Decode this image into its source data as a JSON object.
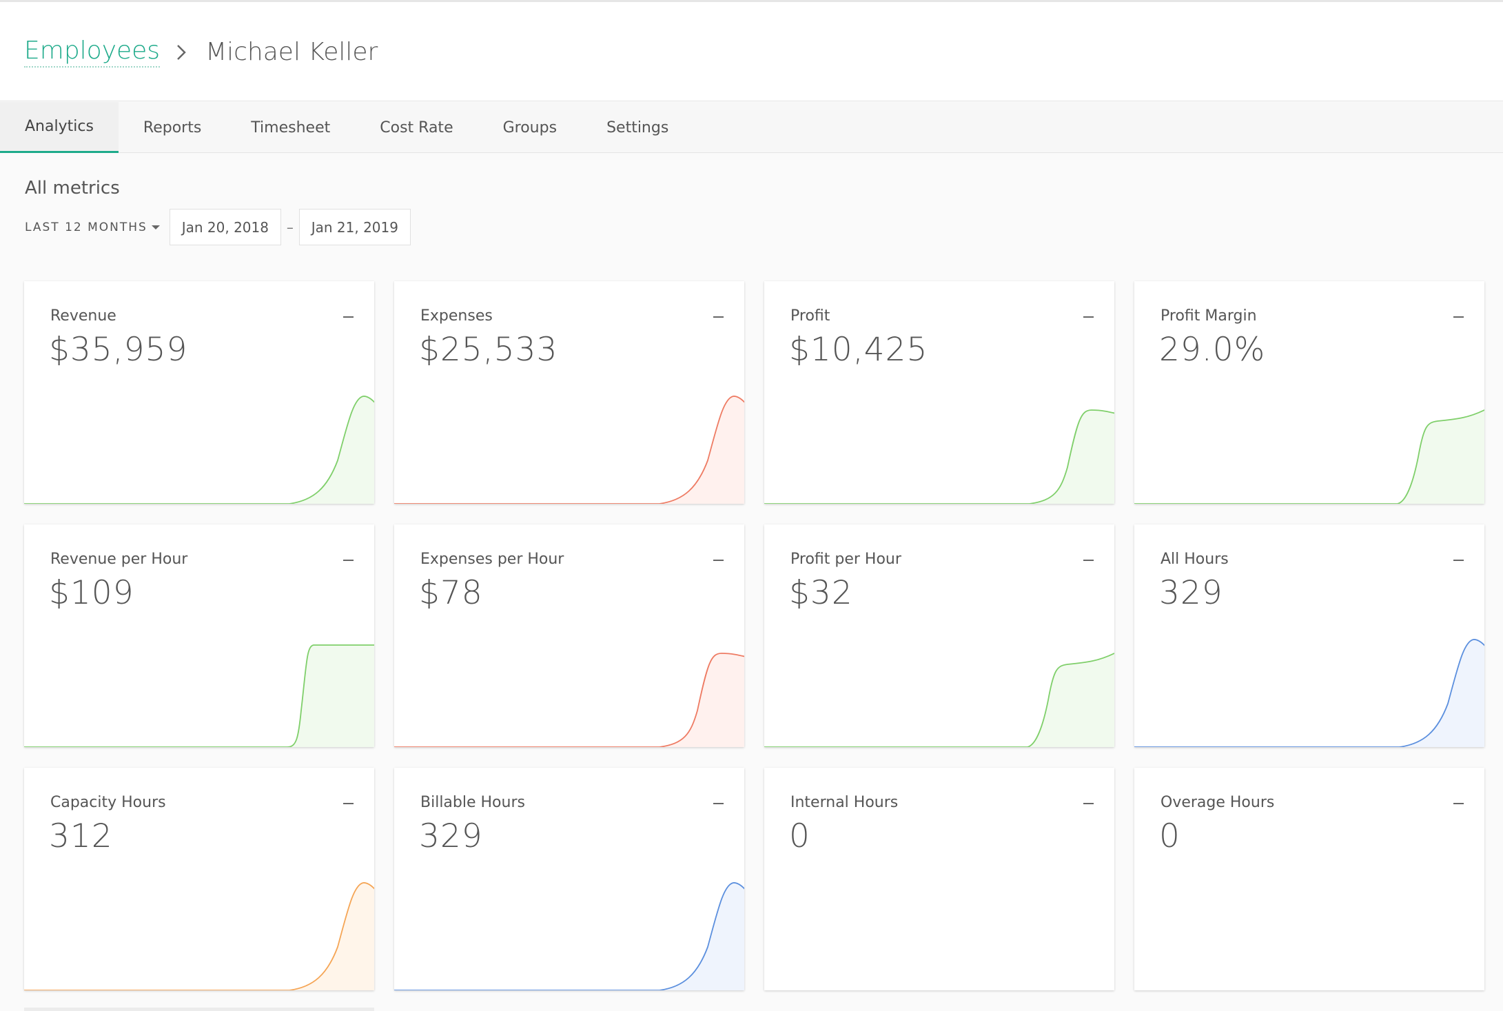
{
  "breadcrumb": {
    "parent": "Employees",
    "current": "Michael Keller"
  },
  "tabs": [
    {
      "label": "Analytics",
      "active": true
    },
    {
      "label": "Reports",
      "active": false
    },
    {
      "label": "Timesheet",
      "active": false
    },
    {
      "label": "Cost Rate",
      "active": false
    },
    {
      "label": "Groups",
      "active": false
    },
    {
      "label": "Settings",
      "active": false
    }
  ],
  "metrics": {
    "title": "All metrics",
    "range_label": "LAST 12 MONTHS",
    "start_date": "Jan 20, 2018",
    "separator": "–",
    "end_date": "Jan 21, 2019"
  },
  "colors": {
    "accent": "#1daa8a",
    "green": "#7fcf6a",
    "red": "#ee7b63",
    "blue": "#5b8fde",
    "orange": "#f5a555"
  },
  "cards": [
    {
      "label": "Revenue",
      "value": "$35,959",
      "color": "green",
      "trend": "peak"
    },
    {
      "label": "Expenses",
      "value": "$25,533",
      "color": "red",
      "trend": "peak"
    },
    {
      "label": "Profit",
      "value": "$10,425",
      "color": "green",
      "trend": "plateau"
    },
    {
      "label": "Profit Margin",
      "value": "29.0%",
      "color": "green",
      "trend": "rising"
    },
    {
      "label": "Revenue per Hour",
      "value": "$109",
      "color": "green",
      "trend": "flat"
    },
    {
      "label": "Expenses per Hour",
      "value": "$78",
      "color": "red",
      "trend": "plateau"
    },
    {
      "label": "Profit per Hour",
      "value": "$32",
      "color": "green",
      "trend": "rising"
    },
    {
      "label": "All Hours",
      "value": "329",
      "color": "blue",
      "trend": "peak"
    },
    {
      "label": "Capacity Hours",
      "value": "312",
      "color": "orange",
      "trend": "peak"
    },
    {
      "label": "Billable Hours",
      "value": "329",
      "color": "blue",
      "trend": "peak"
    },
    {
      "label": "Internal Hours",
      "value": "0",
      "color": "none",
      "trend": "none"
    },
    {
      "label": "Overage Hours",
      "value": "0",
      "color": "none",
      "trend": "none"
    }
  ]
}
